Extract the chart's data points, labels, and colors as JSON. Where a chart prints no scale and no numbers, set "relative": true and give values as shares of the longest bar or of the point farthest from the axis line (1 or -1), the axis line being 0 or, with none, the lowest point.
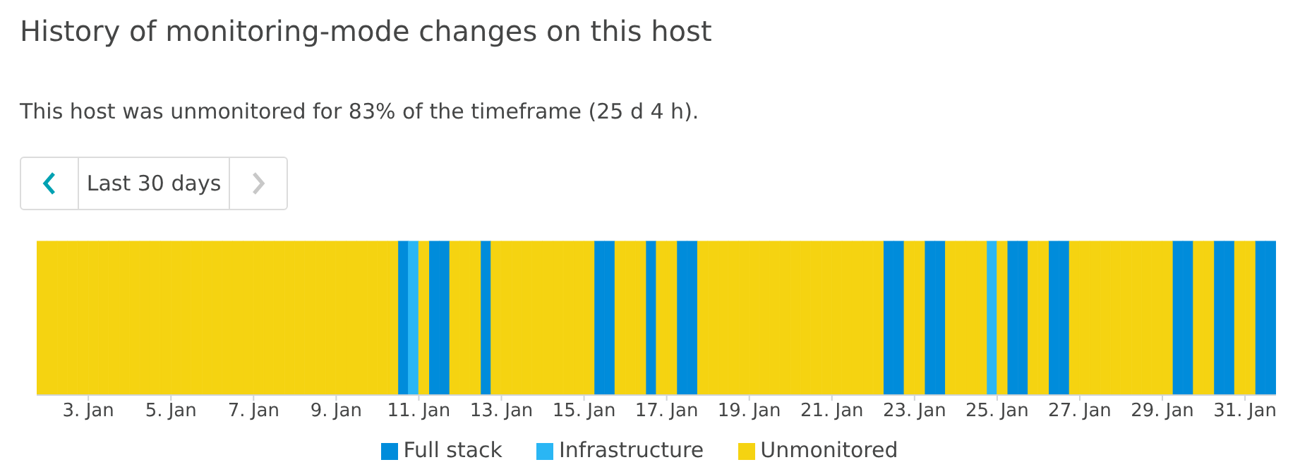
{
  "chart_data": {
    "type": "bar",
    "title": "History of monitoring-mode changes on this host",
    "subtitle": "This host was unmonitored for 83% of the timeframe (25 d 4 h).",
    "annotations": [
      "Last 30 days"
    ],
    "relative": true,
    "legend": "bottom",
    "grid": false,
    "xlim": [
      "--01-01T18:00",
      "--01-31T18:00"
    ],
    "xticks": [
      {
        "value": "--01-03",
        "label": "3. Jan"
      },
      {
        "value": "--01-05",
        "label": "5. Jan"
      },
      {
        "value": "--01-07",
        "label": "7. Jan"
      },
      {
        "value": "--01-09",
        "label": "9. Jan"
      },
      {
        "value": "--01-11",
        "label": "11. Jan"
      },
      {
        "value": "--01-13",
        "label": "13. Jan"
      },
      {
        "value": "--01-15",
        "label": "15. Jan"
      },
      {
        "value": "--01-17",
        "label": "17. Jan"
      },
      {
        "value": "--01-19",
        "label": "19. Jan"
      },
      {
        "value": "--01-21",
        "label": "21. Jan"
      },
      {
        "value": "--01-23",
        "label": "23. Jan"
      },
      {
        "value": "--01-25",
        "label": "25. Jan"
      },
      {
        "value": "--01-27",
        "label": "27. Jan"
      },
      {
        "value": "--01-29",
        "label": "29. Jan"
      },
      {
        "value": "--01-31",
        "label": "31. Jan"
      }
    ],
    "series": [
      {
        "name": "Full stack",
        "color": "#008cdb",
        "x": [
          "--01-10T15:00",
          "--01-11T09:00",
          "--01-11T15:00",
          "--01-12T15:00",
          "--01-15T09:00",
          "--01-15T15:00",
          "--01-16T15:00",
          "--01-17T09:00",
          "--01-17T15:00",
          "--01-22T09:00",
          "--01-22T15:00",
          "--01-23T09:00",
          "--01-23T15:00",
          "--01-25T09:00",
          "--01-25T15:00",
          "--01-26T09:00",
          "--01-26T15:00",
          "--01-29T09:00",
          "--01-29T15:00",
          "--01-30T09:00",
          "--01-30T15:00",
          "--01-31T09:00",
          "--01-31T15:00"
        ],
        "values": [
          1,
          1,
          1,
          1,
          1,
          1,
          1,
          1,
          1,
          1,
          1,
          1,
          1,
          1,
          1,
          1,
          1,
          1,
          1,
          1,
          1,
          1,
          1
        ]
      },
      {
        "name": "Infrastructure",
        "color": "#2ab6f4",
        "x": [
          "--01-10T21:00",
          "--01-24T21:00"
        ],
        "values": [
          1,
          1
        ]
      },
      {
        "name": "Unmonitored",
        "color": "#f5d311",
        "x": [
          "--01-01T21:00",
          "--01-02T03:00",
          "--01-02T09:00",
          "--01-02T15:00",
          "--01-02T21:00",
          "--01-03T03:00",
          "--01-03T09:00",
          "--01-03T15:00",
          "--01-03T21:00",
          "--01-04T03:00",
          "--01-04T09:00",
          "--01-04T15:00",
          "--01-04T21:00",
          "--01-05T03:00",
          "--01-05T09:00",
          "--01-05T15:00",
          "--01-05T21:00",
          "--01-06T03:00",
          "--01-06T09:00",
          "--01-06T15:00",
          "--01-06T21:00",
          "--01-07T03:00",
          "--01-07T09:00",
          "--01-07T15:00",
          "--01-07T21:00",
          "--01-08T03:00",
          "--01-08T09:00",
          "--01-08T15:00",
          "--01-08T21:00",
          "--01-09T03:00",
          "--01-09T09:00",
          "--01-09T15:00",
          "--01-09T21:00",
          "--01-10T03:00",
          "--01-10T09:00",
          "--01-11T03:00",
          "--01-11T21:00",
          "--01-12T03:00",
          "--01-12T09:00",
          "--01-12T21:00",
          "--01-13T03:00",
          "--01-13T09:00",
          "--01-13T15:00",
          "--01-13T21:00",
          "--01-14T03:00",
          "--01-14T09:00",
          "--01-14T15:00",
          "--01-14T21:00",
          "--01-15T03:00",
          "--01-15T21:00",
          "--01-16T03:00",
          "--01-16T09:00",
          "--01-16T21:00",
          "--01-17T03:00",
          "--01-17T21:00",
          "--01-18T03:00",
          "--01-18T09:00",
          "--01-18T15:00",
          "--01-18T21:00",
          "--01-19T03:00",
          "--01-19T09:00",
          "--01-19T15:00",
          "--01-19T21:00",
          "--01-20T03:00",
          "--01-20T09:00",
          "--01-20T15:00",
          "--01-20T21:00",
          "--01-21T03:00",
          "--01-21T09:00",
          "--01-21T15:00",
          "--01-21T21:00",
          "--01-22T03:00",
          "--01-22T21:00",
          "--01-23T03:00",
          "--01-23T21:00",
          "--01-24T03:00",
          "--01-24T09:00",
          "--01-24T15:00",
          "--01-25T03:00",
          "--01-25T21:00",
          "--01-26T03:00",
          "--01-26T21:00",
          "--01-27T03:00",
          "--01-27T09:00",
          "--01-27T15:00",
          "--01-27T21:00",
          "--01-28T03:00",
          "--01-28T09:00",
          "--01-28T15:00",
          "--01-28T21:00",
          "--01-29T03:00",
          "--01-29T21:00",
          "--01-30T03:00",
          "--01-30T21:00",
          "--01-31T03:00"
        ],
        "values": [
          1,
          1,
          1,
          1,
          1,
          1,
          1,
          1,
          1,
          1,
          1,
          1,
          1,
          1,
          1,
          1,
          1,
          1,
          1,
          1,
          1,
          1,
          1,
          1,
          1,
          1,
          1,
          1,
          1,
          1,
          1,
          1,
          1,
          1,
          1,
          1,
          1,
          1,
          1,
          1,
          1,
          1,
          1,
          1,
          1,
          1,
          1,
          1,
          1,
          1,
          1,
          1,
          1,
          1,
          1,
          1,
          1,
          1,
          1,
          1,
          1,
          1,
          1,
          1,
          1,
          1,
          1,
          1,
          1,
          1,
          1,
          1,
          1,
          1,
          1,
          1,
          1,
          1,
          1,
          1,
          1,
          1,
          1,
          1,
          1,
          1,
          1,
          1,
          1,
          1,
          1,
          1,
          1,
          1,
          1
        ]
      }
    ]
  }
}
